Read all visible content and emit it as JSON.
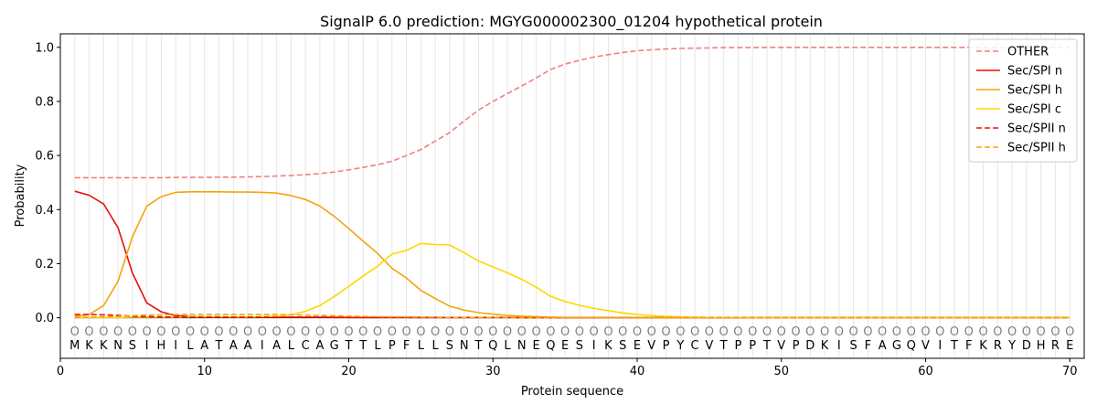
{
  "chart_data": {
    "type": "line",
    "title": "SignalP 6.0 prediction: MGYG000002300_01204 hypothetical protein",
    "xlabel": "Protein sequence",
    "ylabel": "Probability",
    "xlim": [
      0,
      71
    ],
    "ylim": [
      -0.15,
      1.05
    ],
    "x_ticks": [
      0,
      10,
      20,
      30,
      40,
      50,
      60,
      70
    ],
    "y_ticks": [
      0.0,
      0.2,
      0.4,
      0.6,
      0.8,
      1.0
    ],
    "x_tick_labels": [
      "0",
      "10",
      "20",
      "30",
      "40",
      "50",
      "60",
      "70"
    ],
    "y_tick_labels": [
      "0.0",
      "0.2",
      "0.4",
      "0.6",
      "0.8",
      "1.0"
    ],
    "grid": "vertical per residue",
    "legend_position": "top-right",
    "sequence": [
      "M",
      "K",
      "K",
      "N",
      "S",
      "I",
      "H",
      "I",
      "L",
      "A",
      "T",
      "A",
      "A",
      "I",
      "A",
      "L",
      "C",
      "A",
      "G",
      "T",
      "T",
      "L",
      "P",
      "F",
      "L",
      "L",
      "S",
      "N",
      "T",
      "Q",
      "L",
      "N",
      "E",
      "Q",
      "E",
      "S",
      "I",
      "K",
      "S",
      "E",
      "V",
      "P",
      "Y",
      "C",
      "V",
      "T",
      "P",
      "P",
      "T",
      "V",
      "P",
      "D",
      "K",
      "I",
      "S",
      "F",
      "A",
      "G",
      "Q",
      "V",
      "I",
      "T",
      "F",
      "K",
      "R",
      "Y",
      "D",
      "H",
      "R",
      "E"
    ],
    "labels_marker": "O",
    "x": [
      1,
      2,
      3,
      4,
      5,
      6,
      7,
      8,
      9,
      10,
      11,
      12,
      13,
      14,
      15,
      16,
      17,
      18,
      19,
      20,
      21,
      22,
      23,
      24,
      25,
      26,
      27,
      28,
      29,
      30,
      31,
      32,
      33,
      34,
      35,
      36,
      37,
      38,
      39,
      40,
      41,
      42,
      43,
      44,
      45,
      46,
      47,
      48,
      49,
      50,
      51,
      52,
      53,
      54,
      55,
      56,
      57,
      58,
      59,
      60,
      61,
      62,
      63,
      64,
      65,
      66,
      67,
      68,
      69,
      70
    ],
    "series": [
      {
        "name": "OTHER",
        "color": "#f08080",
        "dash": "dashed",
        "values": [
          0.518,
          0.518,
          0.518,
          0.518,
          0.518,
          0.518,
          0.518,
          0.519,
          0.519,
          0.519,
          0.52,
          0.52,
          0.521,
          0.522,
          0.524,
          0.526,
          0.529,
          0.533,
          0.539,
          0.547,
          0.556,
          0.566,
          0.579,
          0.6,
          0.622,
          0.653,
          0.685,
          0.728,
          0.768,
          0.8,
          0.829,
          0.857,
          0.887,
          0.918,
          0.938,
          0.952,
          0.964,
          0.973,
          0.981,
          0.987,
          0.991,
          0.994,
          0.996,
          0.997,
          0.998,
          0.999,
          0.999,
          0.999,
          1.0,
          1.0,
          1.0,
          1.0,
          1.0,
          1.0,
          1.0,
          1.0,
          1.0,
          1.0,
          1.0,
          1.0,
          1.0,
          1.0,
          1.0,
          1.0,
          1.0,
          1.0,
          1.0,
          1.0,
          1.0,
          1.0
        ]
      },
      {
        "name": "Sec/SPI n",
        "color": "#e8100c",
        "dash": "solid",
        "values": [
          0.468,
          0.453,
          0.421,
          0.333,
          0.165,
          0.055,
          0.022,
          0.008,
          0.004,
          0.003,
          0.003,
          0.002,
          0.002,
          0.002,
          0.002,
          0.002,
          0.002,
          0.002,
          0.002,
          0.001,
          0.001,
          0.001,
          0.001,
          0.001,
          0.001,
          0.001,
          0.001,
          0.001,
          0.001,
          0.001,
          0.001,
          0,
          0,
          0,
          0,
          0,
          0,
          0,
          0,
          0,
          0,
          0,
          0,
          0,
          0,
          0,
          0,
          0,
          0,
          0,
          0,
          0,
          0,
          0,
          0,
          0,
          0,
          0,
          0,
          0,
          0,
          0,
          0,
          0,
          0,
          0,
          0,
          0,
          0,
          0
        ]
      },
      {
        "name": "Sec/SPI h",
        "color": "#f5a30a",
        "dash": "solid",
        "values": [
          0.005,
          0.012,
          0.045,
          0.135,
          0.3,
          0.413,
          0.448,
          0.464,
          0.466,
          0.466,
          0.466,
          0.465,
          0.465,
          0.464,
          0.461,
          0.452,
          0.437,
          0.413,
          0.375,
          0.33,
          0.283,
          0.238,
          0.183,
          0.147,
          0.101,
          0.071,
          0.043,
          0.028,
          0.019,
          0.013,
          0.009,
          0.006,
          0.004,
          0.002,
          0.001,
          0.001,
          0.001,
          0,
          0,
          0,
          0,
          0,
          0,
          0,
          0,
          0,
          0,
          0,
          0,
          0,
          0,
          0,
          0,
          0,
          0,
          0,
          0,
          0,
          0,
          0,
          0,
          0,
          0,
          0,
          0,
          0,
          0,
          0,
          0,
          0
        ]
      },
      {
        "name": "Sec/SPI c",
        "color": "#ffd700",
        "dash": "solid",
        "values": [
          0.001,
          0.001,
          0.001,
          0.001,
          0.002,
          0.002,
          0.002,
          0.002,
          0.003,
          0.003,
          0.003,
          0.003,
          0.003,
          0.004,
          0.006,
          0.011,
          0.024,
          0.045,
          0.079,
          0.116,
          0.155,
          0.19,
          0.236,
          0.249,
          0.275,
          0.271,
          0.269,
          0.24,
          0.21,
          0.188,
          0.166,
          0.142,
          0.113,
          0.079,
          0.06,
          0.046,
          0.035,
          0.026,
          0.018,
          0.012,
          0.008,
          0.005,
          0.003,
          0.002,
          0.001,
          0.001,
          0.001,
          0,
          0,
          0,
          0,
          0,
          0,
          0,
          0,
          0,
          0,
          0,
          0,
          0,
          0,
          0,
          0,
          0,
          0,
          0,
          0,
          0,
          0,
          0
        ]
      },
      {
        "name": "Sec/SPII n",
        "color": "#e8100c",
        "dash": "dashed",
        "values": [
          0.012,
          0.012,
          0.011,
          0.009,
          0.006,
          0.004,
          0.003,
          0.002,
          0.002,
          0.002,
          0.002,
          0.002,
          0.002,
          0.002,
          0.002,
          0.002,
          0.002,
          0.002,
          0.001,
          0.001,
          0.001,
          0.001,
          0.001,
          0.001,
          0.001,
          0.001,
          0.001,
          0.001,
          0.001,
          0.001,
          0.001,
          0,
          0,
          0,
          0,
          0,
          0,
          0,
          0,
          0,
          0,
          0,
          0,
          0,
          0,
          0,
          0,
          0,
          0,
          0,
          0,
          0,
          0,
          0,
          0,
          0,
          0,
          0,
          0,
          0,
          0,
          0,
          0,
          0,
          0,
          0,
          0,
          0,
          0,
          0
        ]
      },
      {
        "name": "Sec/SPII h",
        "color": "#f5a30a",
        "dash": "dashed",
        "values": [
          0.001,
          0.002,
          0.003,
          0.005,
          0.008,
          0.01,
          0.011,
          0.012,
          0.012,
          0.012,
          0.012,
          0.012,
          0.012,
          0.012,
          0.012,
          0.011,
          0.01,
          0.009,
          0.008,
          0.006,
          0.005,
          0.004,
          0.003,
          0.003,
          0.002,
          0.002,
          0.001,
          0.001,
          0.001,
          0.001,
          0,
          0,
          0,
          0,
          0,
          0,
          0,
          0,
          0,
          0,
          0,
          0,
          0,
          0,
          0,
          0,
          0,
          0,
          0,
          0,
          0,
          0,
          0,
          0,
          0,
          0,
          0,
          0,
          0,
          0,
          0,
          0,
          0,
          0,
          0,
          0,
          0,
          0,
          0,
          0
        ]
      }
    ]
  }
}
